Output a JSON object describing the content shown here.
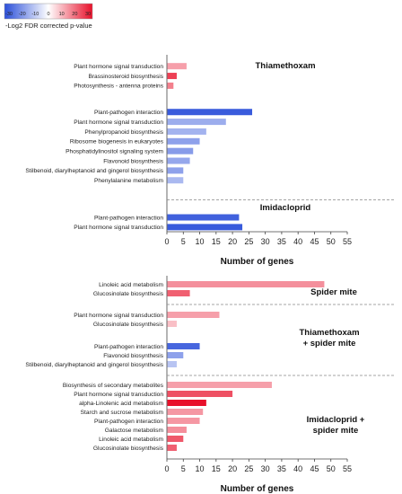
{
  "legend": {
    "title": "-Log2 FDR corrected p-value",
    "ticks": [
      "-30",
      "-20",
      "-10",
      "0",
      "10",
      "20",
      "30"
    ],
    "colors": {
      "negative": "#2b4fd9",
      "zero": "#ffffff",
      "positive": "#e8102a"
    }
  },
  "chart_data": [
    {
      "type": "bar",
      "orientation": "horizontal",
      "xlabel": "Number of genes",
      "xlim": [
        0,
        55
      ],
      "xticks": [
        0,
        5,
        10,
        15,
        20,
        25,
        30,
        35,
        40,
        45,
        50,
        55
      ],
      "groups": [
        {
          "title": "Thiamethoxam",
          "bars": [
            {
              "label": "Plant hormone signal transduction",
              "value": 6,
              "p": 12
            },
            {
              "label": "Brassinosteroid biosynthesis",
              "value": 3,
              "p": 24
            },
            {
              "label": "Photosynthesis - antenna proteins",
              "value": 2,
              "p": 16
            },
            {
              "label": "Plant-pathogen interaction",
              "value": 26,
              "p": -28
            },
            {
              "label": "Plant hormone signal transduction",
              "value": 18,
              "p": -14
            },
            {
              "label": "Phenylpropanoid biosynthesis",
              "value": 12,
              "p": -13
            },
            {
              "label": "Ribosome biogenesis in eukaryotes",
              "value": 10,
              "p": -16
            },
            {
              "label": "Phosphatidylinositol signaling system",
              "value": 8,
              "p": -17
            },
            {
              "label": "Flavonoid biosynthesis",
              "value": 7,
              "p": -15
            },
            {
              "label": "Stilbenoid, diarylheptanoid and gingerol biosynthesis",
              "value": 5,
              "p": -16
            },
            {
              "label": "Phenylalanine metabolism",
              "value": 5,
              "p": -12
            }
          ]
        },
        {
          "title": "Imidacloprid",
          "bars": [
            {
              "label": "Plant-pathogen interaction",
              "value": 22,
              "p": -27
            },
            {
              "label": "Plant hormone signal transduction",
              "value": 23,
              "p": -28
            }
          ]
        }
      ]
    },
    {
      "type": "bar",
      "orientation": "horizontal",
      "xlabel": "Number of genes",
      "xlim": [
        0,
        55
      ],
      "xticks": [
        0,
        5,
        10,
        15,
        20,
        25,
        30,
        35,
        40,
        45,
        50,
        55
      ],
      "groups": [
        {
          "title": "Spider mite",
          "bars": [
            {
              "label": "Linoleic acid metabolism",
              "value": 48,
              "p": 14
            },
            {
              "label": "Glucosinolate biosynthesis",
              "value": 7,
              "p": 20
            }
          ]
        },
        {
          "title": "Thiamethoxam\n+ spider mite",
          "bars": [
            {
              "label": "Plant hormone signal transduction",
              "value": 16,
              "p": 12
            },
            {
              "label": "Glucosinolate biosynthesis",
              "value": 3,
              "p": 8
            },
            {
              "label": "Plant-pathogen interaction",
              "value": 10,
              "p": -26
            },
            {
              "label": "Flavonoid biosynthesis",
              "value": 5,
              "p": -16
            },
            {
              "label": "Stilbenoid, diarylheptanoid and gingerol biosynthesis",
              "value": 3,
              "p": -10
            }
          ]
        },
        {
          "title": "Imidacloprid +\nspider mite",
          "bars": [
            {
              "label": "Biosynthesis of secondary metabolites",
              "value": 32,
              "p": 12
            },
            {
              "label": "Plant hormone signal transduction",
              "value": 20,
              "p": 22
            },
            {
              "label": "alpha-Linolenic acid metabolism",
              "value": 12,
              "p": 30
            },
            {
              "label": "Starch and sucrose metabolism",
              "value": 11,
              "p": 13
            },
            {
              "label": "Plant-pathogen interaction",
              "value": 10,
              "p": 13
            },
            {
              "label": "Galactose metabolism",
              "value": 6,
              "p": 14
            },
            {
              "label": "Linoleic acid metabolism",
              "value": 5,
              "p": 21
            },
            {
              "label": "Glucosinolate biosynthesis",
              "value": 3,
              "p": 20
            }
          ]
        }
      ]
    }
  ]
}
